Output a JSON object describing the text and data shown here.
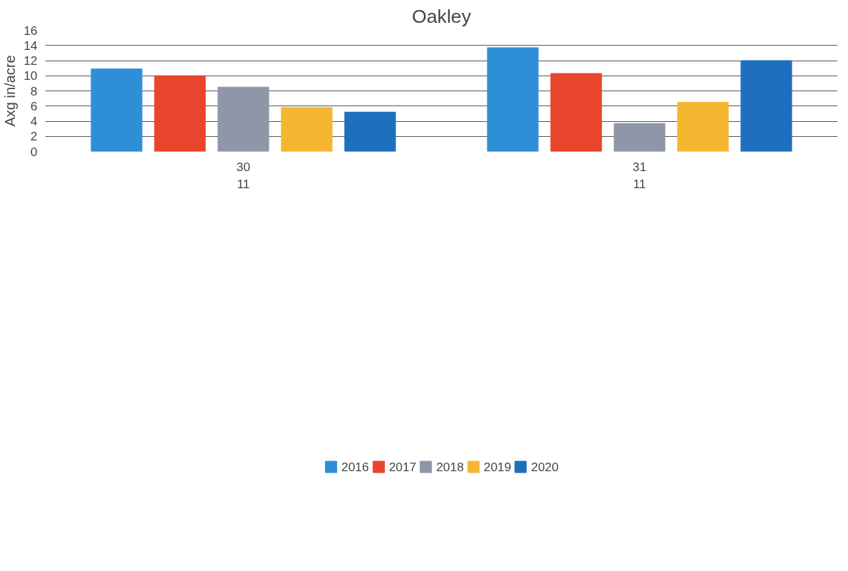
{
  "chart_data": {
    "type": "bar",
    "title": "Oakley",
    "ylabel": "Axg in/acre",
    "categories": [
      "30\n11",
      "31\n11"
    ],
    "series": [
      {
        "name": "2016",
        "color": "#2e8fd6",
        "values": [
          10.9,
          13.7
        ]
      },
      {
        "name": "2017",
        "color": "#e8452c",
        "values": [
          10.0,
          10.3
        ]
      },
      {
        "name": "2018",
        "color": "#8f96a8",
        "values": [
          8.5,
          3.7
        ]
      },
      {
        "name": "2019",
        "color": "#f5b731",
        "values": [
          5.8,
          6.5
        ]
      },
      {
        "name": "2020",
        "color": "#1f6fbf",
        "values": [
          5.2,
          12.0
        ]
      }
    ],
    "ylim": [
      0,
      16
    ],
    "yticks": [
      0,
      2,
      4,
      6,
      8,
      10,
      12,
      14,
      16
    ],
    "grid": "y",
    "legend": "bottom"
  }
}
